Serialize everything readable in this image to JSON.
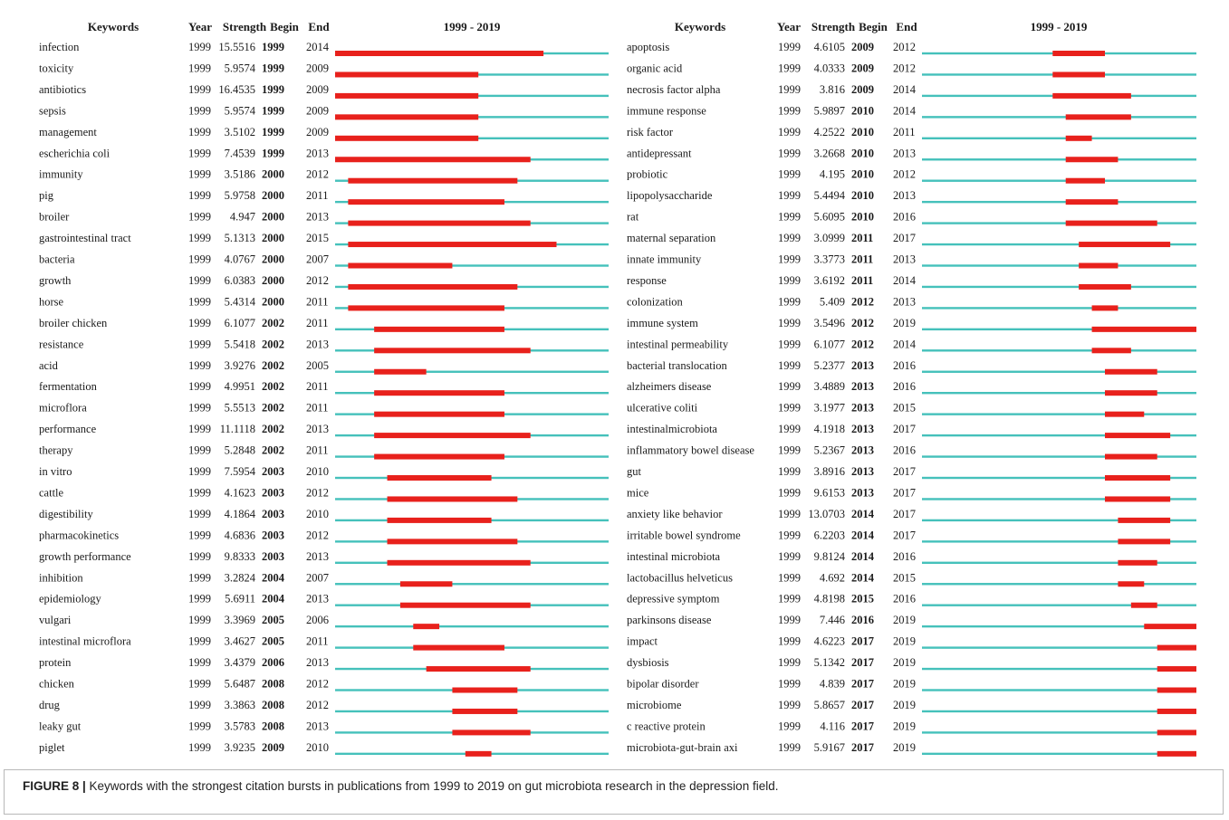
{
  "chart_data": {
    "type": "table",
    "headers": {
      "keywords": "Keywords",
      "year": "Year",
      "strength": "Strength",
      "begin": "Begin",
      "end": "End",
      "range": "1999 - 2019"
    },
    "x_range": [
      1999,
      2019
    ],
    "colors": {
      "burst": "#e8211c",
      "baseline": "#45c1bb"
    },
    "tables": [
      {
        "rows": [
          {
            "keyword": "infection",
            "year": "1999",
            "strength": "15.5516",
            "begin": "1999",
            "end": "2014"
          },
          {
            "keyword": "toxicity",
            "year": "1999",
            "strength": "5.9574",
            "begin": "1999",
            "end": "2009"
          },
          {
            "keyword": "antibiotics",
            "year": "1999",
            "strength": "16.4535",
            "begin": "1999",
            "end": "2009"
          },
          {
            "keyword": "sepsis",
            "year": "1999",
            "strength": "5.9574",
            "begin": "1999",
            "end": "2009"
          },
          {
            "keyword": "management",
            "year": "1999",
            "strength": "3.5102",
            "begin": "1999",
            "end": "2009"
          },
          {
            "keyword": "escherichia coli",
            "year": "1999",
            "strength": "7.4539",
            "begin": "1999",
            "end": "2013"
          },
          {
            "keyword": "immunity",
            "year": "1999",
            "strength": "3.5186",
            "begin": "2000",
            "end": "2012"
          },
          {
            "keyword": "pig",
            "year": "1999",
            "strength": "5.9758",
            "begin": "2000",
            "end": "2011"
          },
          {
            "keyword": "broiler",
            "year": "1999",
            "strength": "4.947",
            "begin": "2000",
            "end": "2013"
          },
          {
            "keyword": "gastrointestinal tract",
            "year": "1999",
            "strength": "5.1313",
            "begin": "2000",
            "end": "2015"
          },
          {
            "keyword": "bacteria",
            "year": "1999",
            "strength": "4.0767",
            "begin": "2000",
            "end": "2007"
          },
          {
            "keyword": "growth",
            "year": "1999",
            "strength": "6.0383",
            "begin": "2000",
            "end": "2012"
          },
          {
            "keyword": "horse",
            "year": "1999",
            "strength": "5.4314",
            "begin": "2000",
            "end": "2011"
          },
          {
            "keyword": "broiler chicken",
            "year": "1999",
            "strength": "6.1077",
            "begin": "2002",
            "end": "2011"
          },
          {
            "keyword": "resistance",
            "year": "1999",
            "strength": "5.5418",
            "begin": "2002",
            "end": "2013"
          },
          {
            "keyword": "acid",
            "year": "1999",
            "strength": "3.9276",
            "begin": "2002",
            "end": "2005"
          },
          {
            "keyword": "fermentation",
            "year": "1999",
            "strength": "4.9951",
            "begin": "2002",
            "end": "2011"
          },
          {
            "keyword": "microflora",
            "year": "1999",
            "strength": "5.5513",
            "begin": "2002",
            "end": "2011"
          },
          {
            "keyword": "performance",
            "year": "1999",
            "strength": "11.1118",
            "begin": "2002",
            "end": "2013"
          },
          {
            "keyword": "therapy",
            "year": "1999",
            "strength": "5.2848",
            "begin": "2002",
            "end": "2011"
          },
          {
            "keyword": "in vitro",
            "year": "1999",
            "strength": "7.5954",
            "begin": "2003",
            "end": "2010"
          },
          {
            "keyword": "cattle",
            "year": "1999",
            "strength": "4.1623",
            "begin": "2003",
            "end": "2012"
          },
          {
            "keyword": "digestibility",
            "year": "1999",
            "strength": "4.1864",
            "begin": "2003",
            "end": "2010"
          },
          {
            "keyword": "pharmacokinetics",
            "year": "1999",
            "strength": "4.6836",
            "begin": "2003",
            "end": "2012"
          },
          {
            "keyword": "growth performance",
            "year": "1999",
            "strength": "9.8333",
            "begin": "2003",
            "end": "2013"
          },
          {
            "keyword": "inhibition",
            "year": "1999",
            "strength": "3.2824",
            "begin": "2004",
            "end": "2007"
          },
          {
            "keyword": "epidemiology",
            "year": "1999",
            "strength": "5.6911",
            "begin": "2004",
            "end": "2013"
          },
          {
            "keyword": "vulgari",
            "year": "1999",
            "strength": "3.3969",
            "begin": "2005",
            "end": "2006"
          },
          {
            "keyword": "intestinal microflora",
            "year": "1999",
            "strength": "3.4627",
            "begin": "2005",
            "end": "2011"
          },
          {
            "keyword": "protein",
            "year": "1999",
            "strength": "3.4379",
            "begin": "2006",
            "end": "2013"
          },
          {
            "keyword": "chicken",
            "year": "1999",
            "strength": "5.6487",
            "begin": "2008",
            "end": "2012"
          },
          {
            "keyword": "drug",
            "year": "1999",
            "strength": "3.3863",
            "begin": "2008",
            "end": "2012"
          },
          {
            "keyword": "leaky gut",
            "year": "1999",
            "strength": "3.5783",
            "begin": "2008",
            "end": "2013"
          },
          {
            "keyword": "piglet",
            "year": "1999",
            "strength": "3.9235",
            "begin": "2009",
            "end": "2010"
          }
        ]
      },
      {
        "rows": [
          {
            "keyword": "apoptosis",
            "year": "1999",
            "strength": "4.6105",
            "begin": "2009",
            "end": "2012"
          },
          {
            "keyword": "organic acid",
            "year": "1999",
            "strength": "4.0333",
            "begin": "2009",
            "end": "2012"
          },
          {
            "keyword": "necrosis factor alpha",
            "year": "1999",
            "strength": "3.816",
            "begin": "2009",
            "end": "2014"
          },
          {
            "keyword": "immune response",
            "year": "1999",
            "strength": "5.9897",
            "begin": "2010",
            "end": "2014"
          },
          {
            "keyword": "risk factor",
            "year": "1999",
            "strength": "4.2522",
            "begin": "2010",
            "end": "2011"
          },
          {
            "keyword": "antidepressant",
            "year": "1999",
            "strength": "3.2668",
            "begin": "2010",
            "end": "2013"
          },
          {
            "keyword": "probiotic",
            "year": "1999",
            "strength": "4.195",
            "begin": "2010",
            "end": "2012"
          },
          {
            "keyword": "lipopolysaccharide",
            "year": "1999",
            "strength": "5.4494",
            "begin": "2010",
            "end": "2013"
          },
          {
            "keyword": "rat",
            "year": "1999",
            "strength": "5.6095",
            "begin": "2010",
            "end": "2016"
          },
          {
            "keyword": "maternal separation",
            "year": "1999",
            "strength": "3.0999",
            "begin": "2011",
            "end": "2017"
          },
          {
            "keyword": "innate immunity",
            "year": "1999",
            "strength": "3.3773",
            "begin": "2011",
            "end": "2013"
          },
          {
            "keyword": "response",
            "year": "1999",
            "strength": "3.6192",
            "begin": "2011",
            "end": "2014"
          },
          {
            "keyword": "colonization",
            "year": "1999",
            "strength": "5.409",
            "begin": "2012",
            "end": "2013"
          },
          {
            "keyword": "immune system",
            "year": "1999",
            "strength": "3.5496",
            "begin": "2012",
            "end": "2019"
          },
          {
            "keyword": "intestinal permeability",
            "year": "1999",
            "strength": "6.1077",
            "begin": "2012",
            "end": "2014"
          },
          {
            "keyword": "bacterial translocation",
            "year": "1999",
            "strength": "5.2377",
            "begin": "2013",
            "end": "2016"
          },
          {
            "keyword": "alzheimers disease",
            "year": "1999",
            "strength": "3.4889",
            "begin": "2013",
            "end": "2016"
          },
          {
            "keyword": "ulcerative coliti",
            "year": "1999",
            "strength": "3.1977",
            "begin": "2013",
            "end": "2015"
          },
          {
            "keyword": "intestinalmicrobiota",
            "year": "1999",
            "strength": "4.1918",
            "begin": "2013",
            "end": "2017"
          },
          {
            "keyword": "inflammatory bowel disease",
            "year": "1999",
            "strength": "5.2367",
            "begin": "2013",
            "end": "2016"
          },
          {
            "keyword": "gut",
            "year": "1999",
            "strength": "3.8916",
            "begin": "2013",
            "end": "2017"
          },
          {
            "keyword": "mice",
            "year": "1999",
            "strength": "9.6153",
            "begin": "2013",
            "end": "2017"
          },
          {
            "keyword": "anxiety like behavior",
            "year": "1999",
            "strength": "13.0703",
            "begin": "2014",
            "end": "2017"
          },
          {
            "keyword": "irritable bowel syndrome",
            "year": "1999",
            "strength": "6.2203",
            "begin": "2014",
            "end": "2017"
          },
          {
            "keyword": "intestinal microbiota",
            "year": "1999",
            "strength": "9.8124",
            "begin": "2014",
            "end": "2016"
          },
          {
            "keyword": "lactobacillus helveticus",
            "year": "1999",
            "strength": "4.692",
            "begin": "2014",
            "end": "2015"
          },
          {
            "keyword": "depressive symptom",
            "year": "1999",
            "strength": "4.8198",
            "begin": "2015",
            "end": "2016"
          },
          {
            "keyword": "parkinsons disease",
            "year": "1999",
            "strength": "7.446",
            "begin": "2016",
            "end": "2019"
          },
          {
            "keyword": "impact",
            "year": "1999",
            "strength": "4.6223",
            "begin": "2017",
            "end": "2019"
          },
          {
            "keyword": "dysbiosis",
            "year": "1999",
            "strength": "5.1342",
            "begin": "2017",
            "end": "2019"
          },
          {
            "keyword": "bipolar disorder",
            "year": "1999",
            "strength": "4.839",
            "begin": "2017",
            "end": "2019"
          },
          {
            "keyword": "microbiome",
            "year": "1999",
            "strength": "5.8657",
            "begin": "2017",
            "end": "2019"
          },
          {
            "keyword": "c reactive protein",
            "year": "1999",
            "strength": "4.116",
            "begin": "2017",
            "end": "2019"
          },
          {
            "keyword": "microbiota-gut-brain axi",
            "year": "1999",
            "strength": "5.9167",
            "begin": "2017",
            "end": "2019"
          }
        ]
      }
    ]
  },
  "caption": {
    "label": "FIGURE 8 |",
    "text": " Keywords with the strongest citation bursts in publications from 1999 to 2019 on gut microbiota research in the depression field."
  }
}
